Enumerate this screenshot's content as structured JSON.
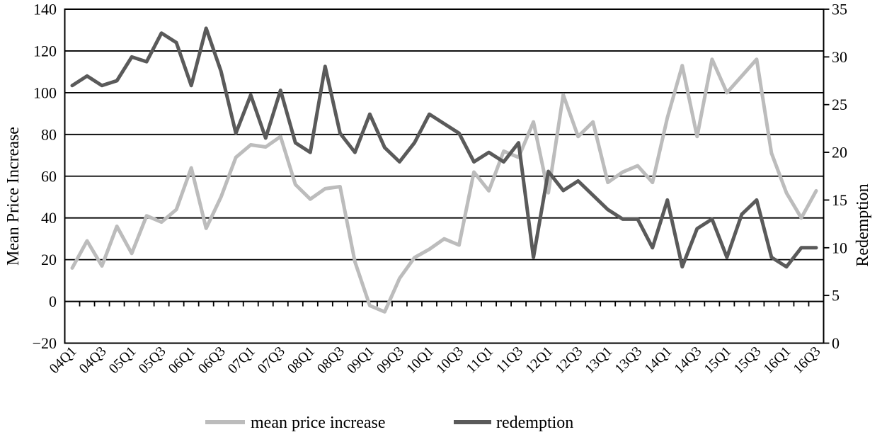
{
  "chart_data": {
    "type": "line",
    "title": "",
    "x": [
      "04Q1",
      "04Q2",
      "04Q3",
      "04Q4",
      "05Q1",
      "05Q2",
      "05Q3",
      "05Q4",
      "06Q1",
      "06Q2",
      "06Q3",
      "06Q4",
      "07Q1",
      "07Q2",
      "07Q3",
      "07Q4",
      "08Q1",
      "08Q2",
      "08Q3",
      "08Q4",
      "09Q1",
      "09Q2",
      "09Q3",
      "09Q4",
      "10Q1",
      "10Q2",
      "10Q3",
      "10Q4",
      "11Q1",
      "11Q2",
      "11Q3",
      "11Q4",
      "12Q1",
      "12Q2",
      "12Q3",
      "12Q4",
      "13Q1",
      "13Q2",
      "13Q3",
      "13Q4",
      "14Q1",
      "14Q2",
      "14Q3",
      "14Q4",
      "15Q1",
      "15Q2",
      "15Q3",
      "15Q4",
      "16Q1",
      "16Q2",
      "16Q3"
    ],
    "x_label_step": 2,
    "series": [
      {
        "name": "mean price increase",
        "axis": "left",
        "color": "#bcbcbc",
        "values": [
          16,
          29,
          17,
          36,
          23,
          41,
          38,
          44,
          64,
          35,
          50,
          69,
          75,
          74,
          79,
          56,
          49,
          54,
          55,
          19,
          -2,
          -5,
          11,
          21,
          25,
          30,
          27,
          62,
          53,
          72,
          69,
          86,
          52,
          99,
          79,
          86,
          57,
          62,
          65,
          57,
          88,
          113,
          79,
          116,
          100,
          108,
          116,
          71,
          52,
          40,
          53
        ]
      },
      {
        "name": "redemption",
        "axis": "right",
        "color": "#5a5a5a",
        "values": [
          27,
          28,
          27,
          27.5,
          30,
          29.5,
          32.5,
          31.5,
          27,
          33,
          28.5,
          22,
          26,
          21.5,
          26.5,
          21,
          20,
          29,
          22,
          20,
          24,
          20.5,
          19,
          21,
          24,
          23,
          22,
          19,
          20,
          19,
          21,
          9,
          18,
          16,
          17,
          15.5,
          14,
          13,
          13,
          10,
          15,
          8,
          12,
          13,
          9,
          13.5,
          15,
          9,
          8,
          10,
          10
        ]
      }
    ],
    "left_axis": {
      "label": "Mean Price Increase",
      "range": [
        -20,
        140
      ],
      "tick_step": 20,
      "ticks": [
        140,
        120,
        100,
        80,
        60,
        40,
        20,
        0,
        -20
      ]
    },
    "right_axis": {
      "label": "Redemption",
      "range": [
        0,
        35
      ],
      "tick_step": 5,
      "ticks": [
        35,
        30,
        25,
        20,
        15,
        10,
        5,
        0
      ]
    },
    "grid": true,
    "legend_position": "bottom",
    "legend": [
      {
        "label": "mean price increase",
        "color": "#bcbcbc"
      },
      {
        "label": "redemption",
        "color": "#5a5a5a"
      }
    ],
    "axis_color": "#000000",
    "background": "#ffffff"
  }
}
